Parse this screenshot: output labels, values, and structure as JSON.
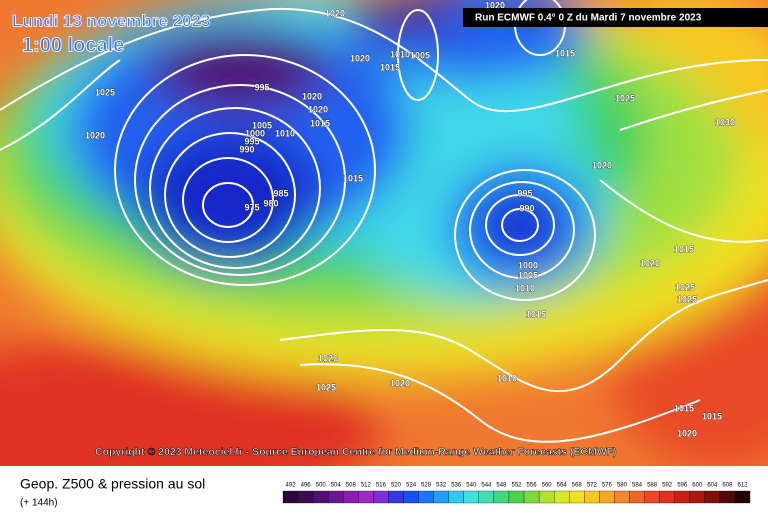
{
  "header": {
    "title": "Lundi 13 novembre 2023",
    "time": "1:00 locale",
    "run": "Run ECMWF 0.4° 0 Z du Mardi 7 novembre 2023"
  },
  "copyright": "Copyright © 2023 Meteociel.fr - Source European Centre for Medium-Range Weather Forecasts (ECMWF)",
  "footer": {
    "title": "Geop. Z500 & pression au sol",
    "lead": "(+ 144h)"
  },
  "isobar_labels": [
    1025,
    1020,
    1020,
    1020,
    1015,
    1010,
    1005,
    1015,
    1020,
    1025,
    1030,
    1020,
    995,
    1020,
    1020,
    1015,
    1005,
    1000,
    1010,
    995,
    990,
    985,
    980,
    975,
    1015,
    995,
    990,
    1000,
    1005,
    1010,
    1015,
    1015,
    1020,
    1025,
    1025,
    1020,
    1025,
    1020,
    1010,
    1015,
    1015,
    1020
  ],
  "scale": {
    "labels": [
      492,
      496,
      500,
      504,
      508,
      512,
      516,
      520,
      524,
      528,
      532,
      536,
      540,
      544,
      548,
      552,
      556,
      560,
      564,
      568,
      572,
      576,
      580,
      584,
      588,
      592,
      596,
      600,
      604,
      608,
      612
    ],
    "colors": [
      "#2a0838",
      "#3a0c50",
      "#501070",
      "#6a1890",
      "#8a20b0",
      "#a028c8",
      "#7a30d8",
      "#3838e0",
      "#1850f0",
      "#1878f8",
      "#20a0f8",
      "#30c8f0",
      "#40e0e0",
      "#40e0b0",
      "#40d880",
      "#50d050",
      "#80d840",
      "#b0e030",
      "#d8e828",
      "#f0e020",
      "#f8c820",
      "#f8a820",
      "#f88828",
      "#f06828",
      "#e84828",
      "#e03020",
      "#c82018",
      "#a81810",
      "#801008",
      "#500808",
      "#200404"
    ]
  }
}
